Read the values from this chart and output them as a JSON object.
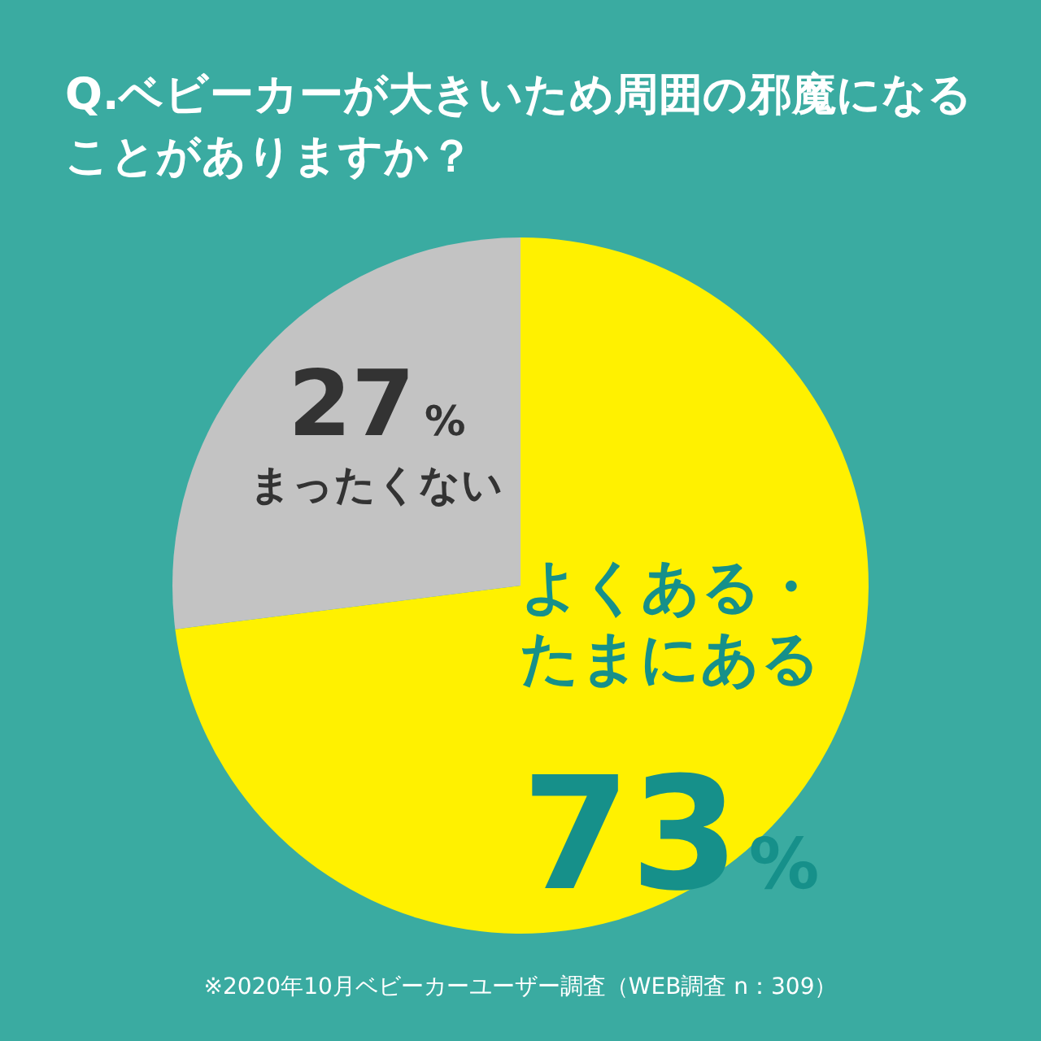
{
  "chart_data": {
    "type": "pie",
    "title": "Q.ベビーカーが大きいため周囲の邪魔になることがありますか？",
    "categories": [
      "よくある・たまにある",
      "まったくない"
    ],
    "values": [
      73,
      27
    ],
    "colors": [
      "#fff100",
      "#c3c3c3"
    ],
    "value_labels": [
      "73%",
      "27%"
    ],
    "legend": false,
    "annotations": [
      "※2020年10月ベビーカーユーザー調査（WEB調査 n：309）"
    ]
  }
}
